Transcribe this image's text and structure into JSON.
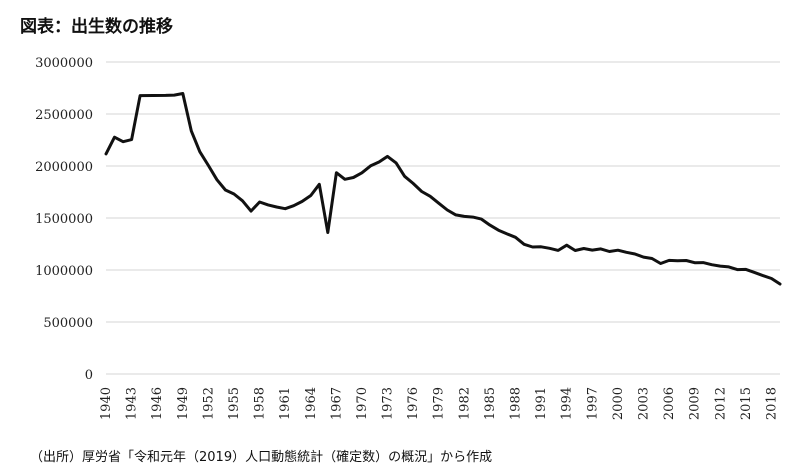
{
  "title": "図表：出生数の推移",
  "source": "（出所）厚労省「令和元年（2019）人口動態統計（確定数）の概況」から作成",
  "chart_data": {
    "type": "line",
    "title": "図表：出生数の推移",
    "xlabel": "",
    "ylabel": "",
    "ylim": [
      0,
      3000000
    ],
    "yticks": [
      0,
      500000,
      1000000,
      1500000,
      2000000,
      2500000,
      3000000
    ],
    "xticks": [
      1940,
      1943,
      1946,
      1949,
      1952,
      1955,
      1958,
      1961,
      1964,
      1967,
      1970,
      1973,
      1976,
      1979,
      1982,
      1985,
      1988,
      1991,
      1994,
      1997,
      2000,
      2003,
      2006,
      2009,
      2012,
      2015,
      2018
    ],
    "grid": "horizontal",
    "legend": "none",
    "line_color": "#111111",
    "x": [
      1940,
      1941,
      1942,
      1943,
      1944,
      1947,
      1948,
      1949,
      1950,
      1951,
      1952,
      1953,
      1954,
      1955,
      1956,
      1957,
      1958,
      1959,
      1960,
      1961,
      1962,
      1963,
      1964,
      1965,
      1966,
      1967,
      1968,
      1969,
      1970,
      1971,
      1972,
      1973,
      1974,
      1975,
      1976,
      1977,
      1978,
      1979,
      1980,
      1981,
      1982,
      1983,
      1984,
      1985,
      1986,
      1987,
      1988,
      1989,
      1990,
      1991,
      1992,
      1993,
      1994,
      1995,
      1996,
      1997,
      1998,
      1999,
      2000,
      2001,
      2002,
      2003,
      2004,
      2005,
      2006,
      2007,
      2008,
      2009,
      2010,
      2011,
      2012,
      2013,
      2014,
      2015,
      2016,
      2017,
      2018,
      2019
    ],
    "values": [
      2115867,
      2277283,
      2233660,
      2253535,
      2677000,
      2678792,
      2681624,
      2696638,
      2337507,
      2137689,
      2005162,
      1868040,
      1769580,
      1730692,
      1665278,
      1566713,
      1653469,
      1626088,
      1606041,
      1589372,
      1618616,
      1659521,
      1716761,
      1823697,
      1360974,
      1935647,
      1871839,
      1889815,
      1934239,
      2000973,
      2038682,
      2091983,
      2029989,
      1901440,
      1832617,
      1755100,
      1708643,
      1642580,
      1576889,
      1529455,
      1515392,
      1508687,
      1489780,
      1431577,
      1382946,
      1346658,
      1314006,
      1246802,
      1221585,
      1223245,
      1208989,
      1188282,
      1238328,
      1187064,
      1206555,
      1191665,
      1203147,
      1177669,
      1190547,
      1170662,
      1153855,
      1123610,
      1110721,
      1062530,
      1092674,
      1089818,
      1091156,
      1070036,
      1071305,
      1050806,
      1037232,
      1029817,
      1003609,
      1005721,
      977242,
      946146,
      918400,
      865239
    ]
  }
}
